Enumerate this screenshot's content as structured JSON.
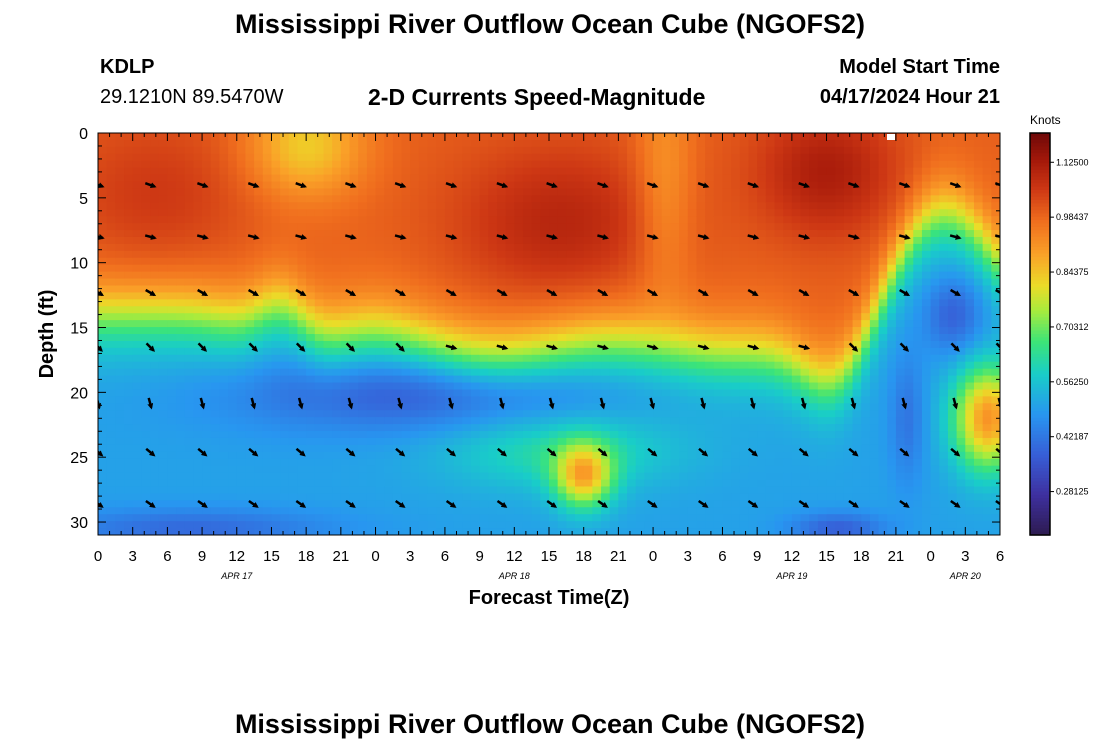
{
  "page": {
    "title": "Mississippi River Outflow Ocean Cube (NGOFS2)",
    "footer_title": "Mississippi River Outflow Ocean Cube (NGOFS2)"
  },
  "station": {
    "id": "KDLP",
    "coords": "29.1210N  89.5470W"
  },
  "model": {
    "label": "Model Start Time",
    "time": "04/17/2024 Hour 21"
  },
  "chart_data": {
    "type": "heatmap",
    "title": "2-D Currents Speed-Magnitude",
    "xlabel": "Forecast Time(Z)",
    "ylabel": "Depth (ft)",
    "x_tick_labels": [
      "0",
      "3",
      "6",
      "9",
      "12",
      "15",
      "18",
      "21",
      "0",
      "3",
      "6",
      "9",
      "12",
      "15",
      "18",
      "21",
      "0",
      "3",
      "6",
      "9",
      "12",
      "15",
      "18",
      "21",
      "0",
      "3",
      "6"
    ],
    "date_labels": [
      {
        "label": "APR 17",
        "hour_index": 12
      },
      {
        "label": "APR 18",
        "hour_index": 36
      },
      {
        "label": "APR 19",
        "hour_index": 60
      },
      {
        "label": "APR 20",
        "hour_index": 75
      }
    ],
    "y_ticks": [
      0,
      5,
      10,
      15,
      20,
      25,
      30
    ],
    "ylim": [
      0,
      31
    ],
    "xlim_hours": [
      0,
      78
    ],
    "arrow_depths_ft": [
      4,
      8,
      12.3,
      16.5,
      20.8,
      24.6,
      28.6
    ],
    "arrow_hours": [
      0,
      4.5,
      9,
      13.4,
      17.5,
      21.8,
      26.1,
      30.5,
      34.9,
      39.2,
      43.6,
      47.9,
      52.3,
      56.6,
      61,
      65.3,
      69.7,
      74.1,
      78
    ],
    "colorbar": {
      "unit": "Knots",
      "tick_labels": [
        "1.12500",
        "0.98437",
        "0.84375",
        "0.70312",
        "0.56250",
        "0.42187",
        "0.28125"
      ],
      "tick_values": [
        1.125,
        0.98437,
        0.84375,
        0.70312,
        0.5625,
        0.42187,
        0.28125
      ],
      "range": [
        0.17,
        1.2
      ]
    }
  }
}
